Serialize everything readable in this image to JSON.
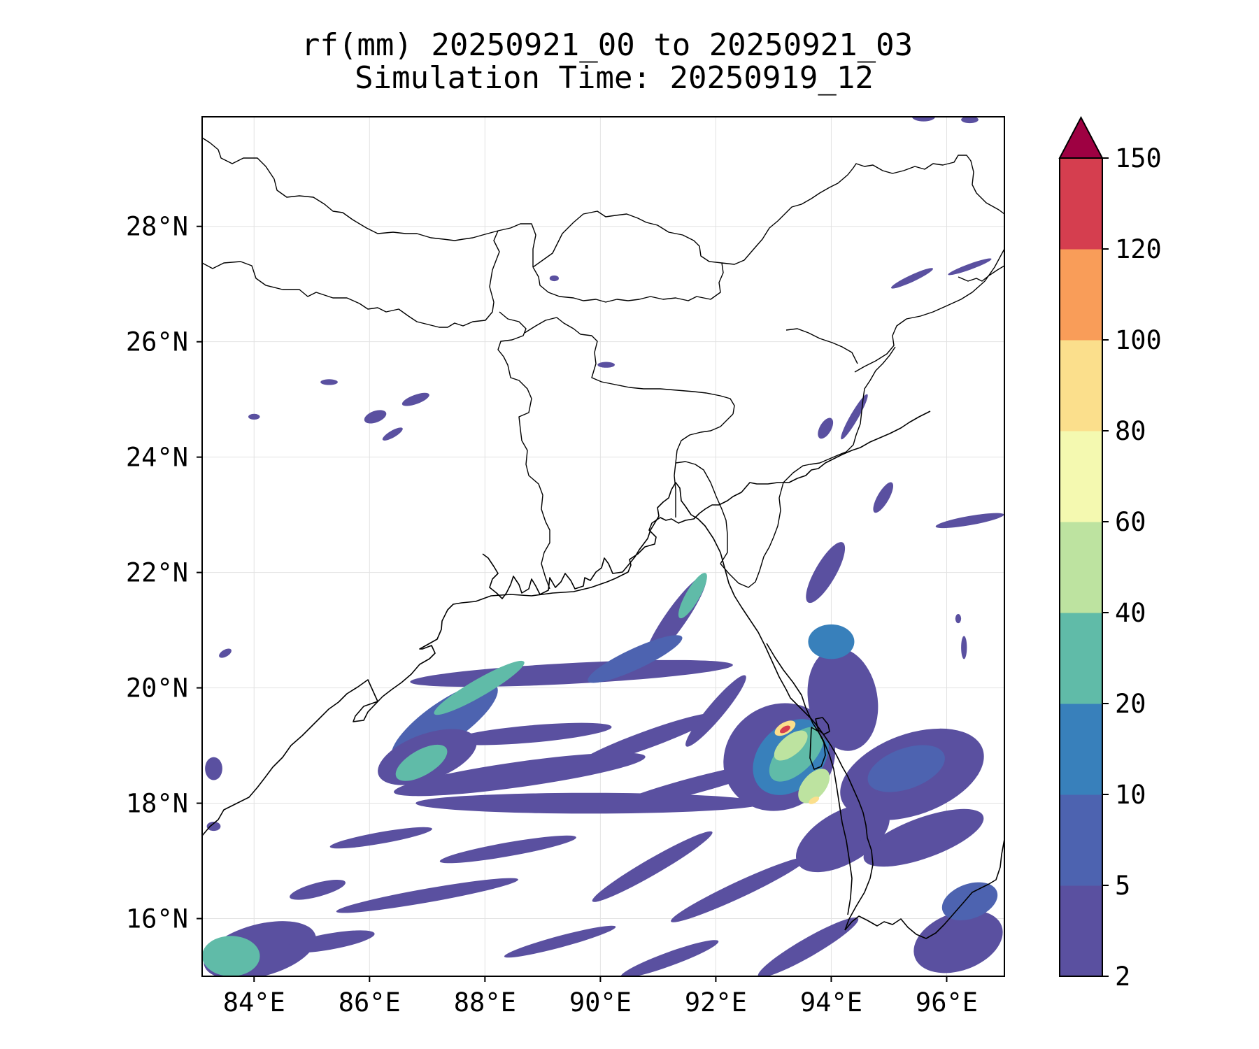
{
  "map": {
    "title_line1": "rf(mm) 20250921_00 to 20250921_03",
    "title_line2": "Simulation Time: 20250919_12",
    "lon_range": [
      83.1,
      97.0
    ],
    "lat_range": [
      15.0,
      29.9
    ],
    "lon_ticks": [
      {
        "value": 84,
        "label": "84°E"
      },
      {
        "value": 86,
        "label": "86°E"
      },
      {
        "value": 88,
        "label": "88°E"
      },
      {
        "value": 90,
        "label": "90°E"
      },
      {
        "value": 92,
        "label": "92°E"
      },
      {
        "value": 94,
        "label": "94°E"
      },
      {
        "value": 96,
        "label": "96°E"
      }
    ],
    "lat_ticks": [
      {
        "value": 16,
        "label": "16°N"
      },
      {
        "value": 18,
        "label": "18°N"
      },
      {
        "value": 20,
        "label": "20°N"
      },
      {
        "value": 22,
        "label": "22°N"
      },
      {
        "value": 24,
        "label": "24°N"
      },
      {
        "value": 26,
        "label": "26°N"
      },
      {
        "value": 28,
        "label": "28°N"
      }
    ],
    "gridlines": true
  },
  "colorbar": {
    "orientation": "vertical",
    "extend": "max",
    "levels": [
      2,
      5,
      10,
      20,
      40,
      60,
      80,
      100,
      120,
      150
    ],
    "labels": [
      "2",
      "5",
      "10",
      "20",
      "40",
      "60",
      "80",
      "100",
      "120",
      "150"
    ],
    "colors": [
      "#5a50a0",
      "#4d63b0",
      "#3880bb",
      "#60bba8",
      "#bde3a0",
      "#f4f9b0",
      "#fbdf8c",
      "#f99d59",
      "#d53e4f"
    ],
    "over_color": "#9e0142"
  },
  "rain_features": [
    {
      "lon": 89.5,
      "lat": 20.25,
      "rx": 2.8,
      "ry": 0.18,
      "rot": -3,
      "level": 0
    },
    {
      "lon": 87.3,
      "lat": 19.4,
      "rx": 1.1,
      "ry": 0.35,
      "rot": -35,
      "level": 1
    },
    {
      "lon": 87.0,
      "lat": 18.8,
      "rx": 0.9,
      "ry": 0.4,
      "rot": -20,
      "level": 0
    },
    {
      "lon": 86.9,
      "lat": 18.7,
      "rx": 0.5,
      "ry": 0.22,
      "rot": -30,
      "level": 3
    },
    {
      "lon": 87.9,
      "lat": 20.0,
      "rx": 0.9,
      "ry": 0.15,
      "rot": -30,
      "level": 3
    },
    {
      "lon": 88.6,
      "lat": 18.5,
      "rx": 2.2,
      "ry": 0.22,
      "rot": -8,
      "level": 0
    },
    {
      "lon": 89.8,
      "lat": 18.0,
      "rx": 3.0,
      "ry": 0.18,
      "rot": 0,
      "level": 0
    },
    {
      "lon": 88.8,
      "lat": 19.2,
      "rx": 1.4,
      "ry": 0.15,
      "rot": -5,
      "level": 0
    },
    {
      "lon": 91.3,
      "lat": 21.2,
      "rx": 0.9,
      "ry": 0.18,
      "rot": -55,
      "level": 0
    },
    {
      "lon": 91.6,
      "lat": 21.6,
      "rx": 0.45,
      "ry": 0.12,
      "rot": -60,
      "level": 3
    },
    {
      "lon": 90.6,
      "lat": 20.5,
      "rx": 0.9,
      "ry": 0.18,
      "rot": -25,
      "level": 1
    },
    {
      "lon": 90.8,
      "lat": 19.1,
      "rx": 1.3,
      "ry": 0.15,
      "rot": -20,
      "level": 0
    },
    {
      "lon": 92.0,
      "lat": 19.6,
      "rx": 0.8,
      "ry": 0.14,
      "rot": -50,
      "level": 0
    },
    {
      "lon": 91.6,
      "lat": 18.3,
      "rx": 1.5,
      "ry": 0.14,
      "rot": -15,
      "level": 0
    },
    {
      "lon": 93.1,
      "lat": 18.8,
      "rx": 1.0,
      "ry": 0.9,
      "rot": -35,
      "level": 0
    },
    {
      "lon": 93.3,
      "lat": 18.8,
      "rx": 0.75,
      "ry": 0.55,
      "rot": -45,
      "level": 2
    },
    {
      "lon": 93.4,
      "lat": 18.85,
      "rx": 0.6,
      "ry": 0.3,
      "rot": -45,
      "level": 3
    },
    {
      "lon": 93.3,
      "lat": 19.0,
      "rx": 0.35,
      "ry": 0.17,
      "rot": -40,
      "level": 4
    },
    {
      "lon": 93.7,
      "lat": 18.3,
      "rx": 0.35,
      "ry": 0.2,
      "rot": -50,
      "level": 4
    },
    {
      "lon": 93.2,
      "lat": 19.3,
      "rx": 0.2,
      "ry": 0.1,
      "rot": -30,
      "level": 6
    },
    {
      "lon": 93.2,
      "lat": 19.28,
      "rx": 0.1,
      "ry": 0.05,
      "rot": -30,
      "level": 8
    },
    {
      "lon": 93.7,
      "lat": 18.05,
      "rx": 0.1,
      "ry": 0.05,
      "rot": -30,
      "level": 6
    },
    {
      "lon": 94.2,
      "lat": 19.8,
      "rx": 0.6,
      "ry": 0.9,
      "rot": -10,
      "level": 0
    },
    {
      "lon": 94.0,
      "lat": 20.8,
      "rx": 0.4,
      "ry": 0.3,
      "rot": 0,
      "level": 2
    },
    {
      "lon": 95.4,
      "lat": 18.5,
      "rx": 1.3,
      "ry": 0.7,
      "rot": -20,
      "level": 0
    },
    {
      "lon": 95.3,
      "lat": 18.6,
      "rx": 0.7,
      "ry": 0.35,
      "rot": -20,
      "level": 1
    },
    {
      "lon": 95.6,
      "lat": 17.4,
      "rx": 1.1,
      "ry": 0.35,
      "rot": -20,
      "level": 0
    },
    {
      "lon": 94.2,
      "lat": 17.4,
      "rx": 0.9,
      "ry": 0.45,
      "rot": -30,
      "level": 0
    },
    {
      "lon": 93.9,
      "lat": 22.0,
      "rx": 0.6,
      "ry": 0.18,
      "rot": -60,
      "level": 0
    },
    {
      "lon": 94.9,
      "lat": 23.3,
      "rx": 0.3,
      "ry": 0.1,
      "rot": -60,
      "level": 0
    },
    {
      "lon": 96.4,
      "lat": 22.9,
      "rx": 0.6,
      "ry": 0.08,
      "rot": -10,
      "level": 0
    },
    {
      "lon": 94.4,
      "lat": 24.7,
      "rx": 0.45,
      "ry": 0.07,
      "rot": -60,
      "level": 0
    },
    {
      "lon": 93.9,
      "lat": 24.5,
      "rx": 0.2,
      "ry": 0.1,
      "rot": -60,
      "level": 0
    },
    {
      "lon": 95.4,
      "lat": 27.1,
      "rx": 0.4,
      "ry": 0.06,
      "rot": -25,
      "level": 0
    },
    {
      "lon": 96.4,
      "lat": 27.3,
      "rx": 0.4,
      "ry": 0.05,
      "rot": -20,
      "level": 0
    },
    {
      "lon": 95.6,
      "lat": 29.9,
      "rx": 0.2,
      "ry": 0.08,
      "rot": 0,
      "level": 0
    },
    {
      "lon": 96.4,
      "lat": 29.85,
      "rx": 0.15,
      "ry": 0.06,
      "rot": 0,
      "level": 0
    },
    {
      "lon": 84.1,
      "lat": 15.45,
      "rx": 1.0,
      "ry": 0.45,
      "rot": -15,
      "level": 0
    },
    {
      "lon": 83.6,
      "lat": 15.35,
      "rx": 0.5,
      "ry": 0.35,
      "rot": 0,
      "level": 3
    },
    {
      "lon": 85.3,
      "lat": 15.6,
      "rx": 0.8,
      "ry": 0.14,
      "rot": -10,
      "level": 0
    },
    {
      "lon": 85.1,
      "lat": 16.5,
      "rx": 0.5,
      "ry": 0.12,
      "rot": -15,
      "level": 0
    },
    {
      "lon": 87.0,
      "lat": 16.4,
      "rx": 1.6,
      "ry": 0.12,
      "rot": -10,
      "level": 0
    },
    {
      "lon": 86.2,
      "lat": 17.4,
      "rx": 0.9,
      "ry": 0.1,
      "rot": -10,
      "level": 0
    },
    {
      "lon": 88.4,
      "lat": 17.2,
      "rx": 1.2,
      "ry": 0.12,
      "rot": -10,
      "level": 0
    },
    {
      "lon": 90.9,
      "lat": 16.9,
      "rx": 1.2,
      "ry": 0.14,
      "rot": -30,
      "level": 0
    },
    {
      "lon": 92.4,
      "lat": 16.5,
      "rx": 1.3,
      "ry": 0.14,
      "rot": -25,
      "level": 0
    },
    {
      "lon": 93.6,
      "lat": 15.5,
      "rx": 1.0,
      "ry": 0.16,
      "rot": -30,
      "level": 0
    },
    {
      "lon": 96.2,
      "lat": 15.6,
      "rx": 0.8,
      "ry": 0.5,
      "rot": -20,
      "level": 0
    },
    {
      "lon": 96.4,
      "lat": 16.3,
      "rx": 0.5,
      "ry": 0.3,
      "rot": -20,
      "level": 1
    },
    {
      "lon": 89.3,
      "lat": 15.6,
      "rx": 1.0,
      "ry": 0.1,
      "rot": -15,
      "level": 0
    },
    {
      "lon": 91.2,
      "lat": 15.3,
      "rx": 0.9,
      "ry": 0.12,
      "rot": -20,
      "level": 0
    },
    {
      "lon": 86.8,
      "lat": 25.0,
      "rx": 0.25,
      "ry": 0.08,
      "rot": -20,
      "level": 0
    },
    {
      "lon": 86.1,
      "lat": 24.7,
      "rx": 0.2,
      "ry": 0.1,
      "rot": -20,
      "level": 0
    },
    {
      "lon": 86.4,
      "lat": 24.4,
      "rx": 0.2,
      "ry": 0.06,
      "rot": -30,
      "level": 0
    },
    {
      "lon": 85.3,
      "lat": 25.3,
      "rx": 0.15,
      "ry": 0.05,
      "rot": 0,
      "level": 0
    },
    {
      "lon": 84.0,
      "lat": 24.7,
      "rx": 0.1,
      "ry": 0.05,
      "rot": 0,
      "level": 0
    },
    {
      "lon": 83.3,
      "lat": 18.6,
      "rx": 0.15,
      "ry": 0.2,
      "rot": 0,
      "level": 0
    },
    {
      "lon": 83.3,
      "lat": 17.6,
      "rx": 0.12,
      "ry": 0.08,
      "rot": 0,
      "level": 0
    },
    {
      "lon": 83.5,
      "lat": 20.6,
      "rx": 0.12,
      "ry": 0.06,
      "rot": -30,
      "level": 0
    },
    {
      "lon": 90.1,
      "lat": 25.6,
      "rx": 0.15,
      "ry": 0.05,
      "rot": 0,
      "level": 0
    },
    {
      "lon": 89.2,
      "lat": 27.1,
      "rx": 0.08,
      "ry": 0.05,
      "rot": 0,
      "level": 0
    },
    {
      "lon": 96.3,
      "lat": 20.7,
      "rx": 0.05,
      "ry": 0.2,
      "rot": 0,
      "level": 0
    },
    {
      "lon": 96.2,
      "lat": 21.2,
      "rx": 0.05,
      "ry": 0.08,
      "rot": 0,
      "level": 0
    }
  ]
}
